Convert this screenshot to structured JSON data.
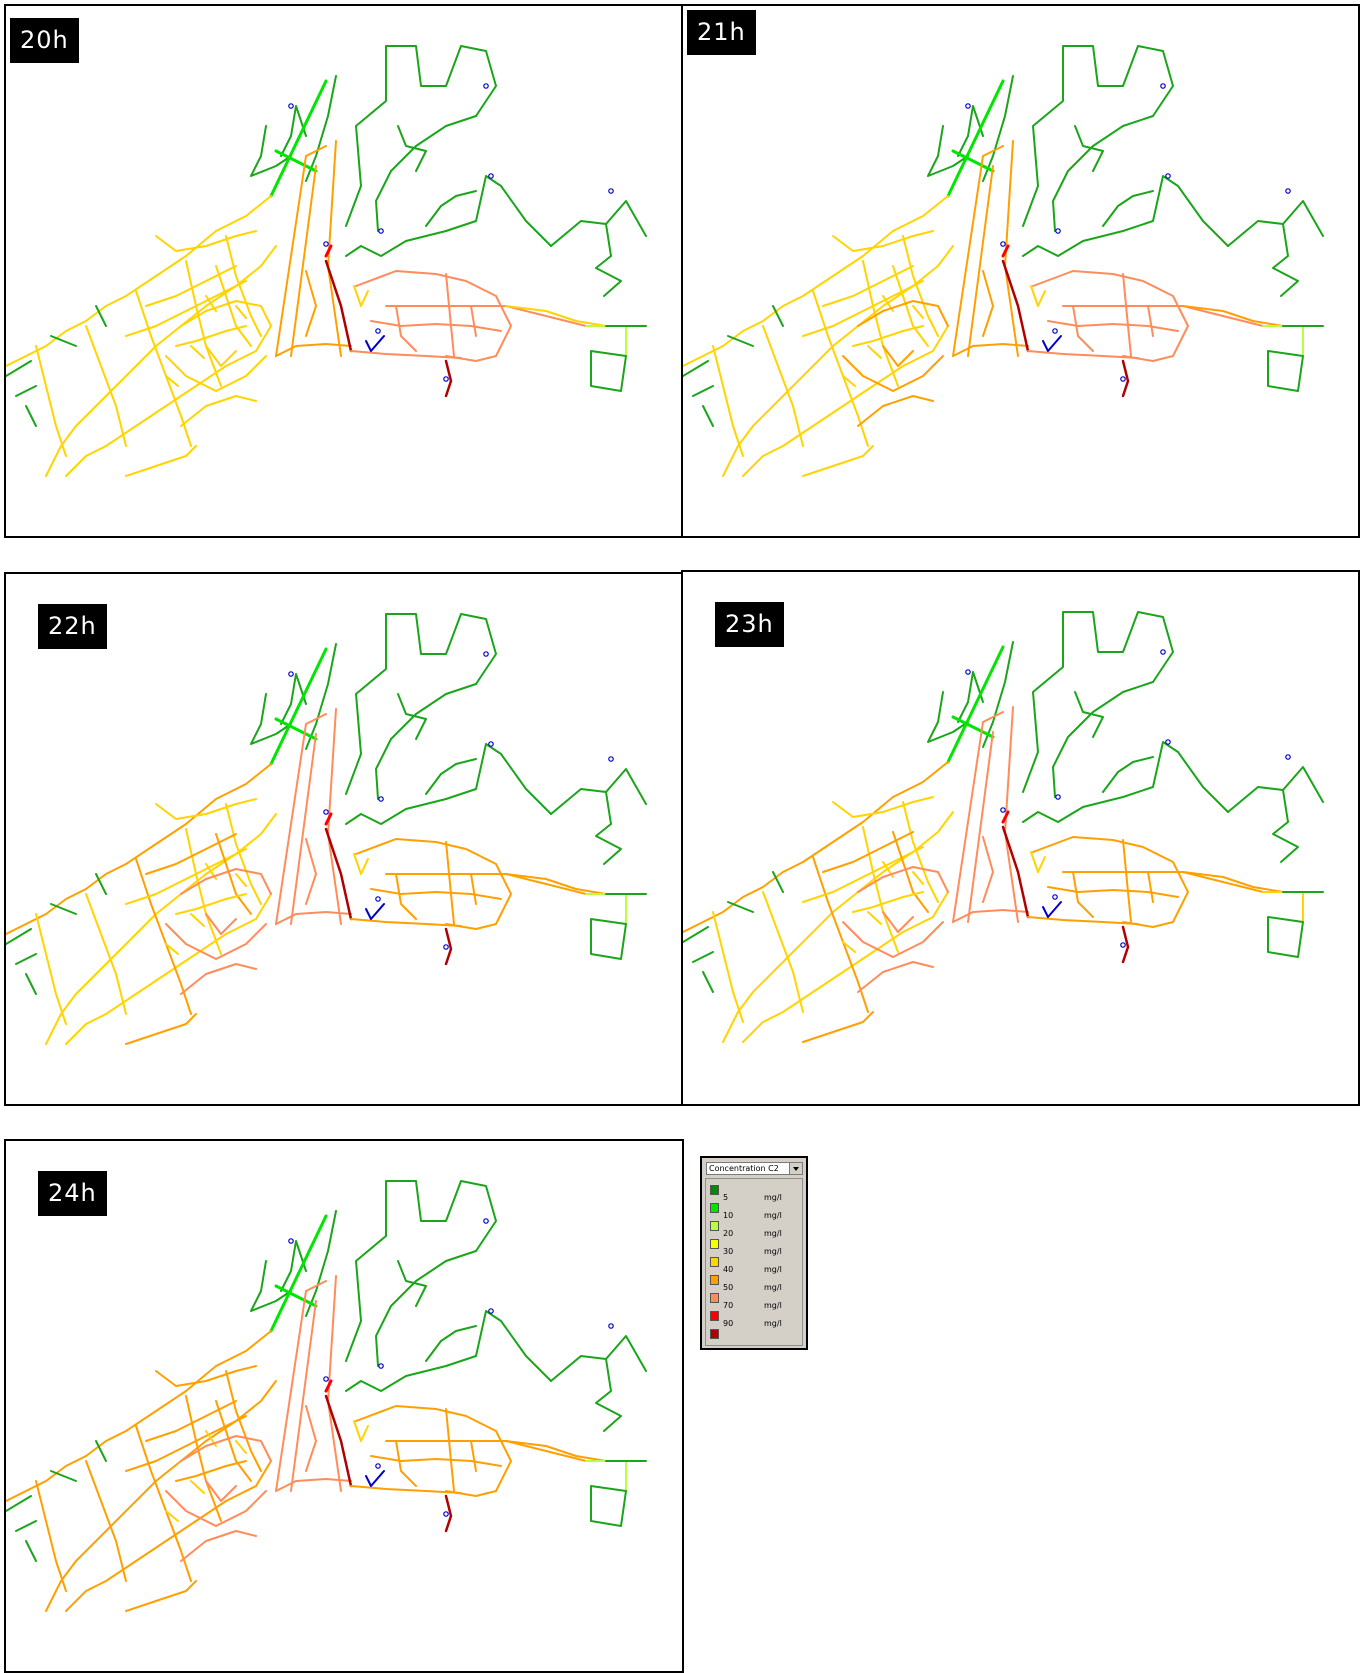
{
  "panels": [
    {
      "label": "20h"
    },
    {
      "label": "21h"
    },
    {
      "label": "22h"
    },
    {
      "label": "23h"
    },
    {
      "label": "24h"
    }
  ],
  "legend": {
    "dropdown": "Concentration C2",
    "levels": [
      {
        "value": "5",
        "unit": "mg/l",
        "color": "#008a00"
      },
      {
        "value": "10",
        "unit": "mg/l",
        "color": "#00e600"
      },
      {
        "value": "20",
        "unit": "mg/l",
        "color": "#b8ff40"
      },
      {
        "value": "30",
        "unit": "mg/l",
        "color": "#f4ff00"
      },
      {
        "value": "40",
        "unit": "mg/l",
        "color": "#ffd400"
      },
      {
        "value": "50",
        "unit": "mg/l",
        "color": "#ffa000"
      },
      {
        "value": "70",
        "unit": "mg/l",
        "color": "#ff8c5a"
      },
      {
        "value": "90",
        "unit": "mg/l",
        "color": "#ff0000"
      },
      {
        "value": "",
        "unit": "",
        "color": "#b00000"
      }
    ]
  },
  "colors": {
    "green": "#1aa51a",
    "bright_green": "#00e600",
    "lime": "#b8ff40",
    "yellow": "#f4ff00",
    "gold": "#ffd400",
    "orange": "#ffa000",
    "salmon": "#ff8c5a",
    "red": "#ff0000",
    "dark_red": "#b00000",
    "blue": "#0000cc"
  }
}
